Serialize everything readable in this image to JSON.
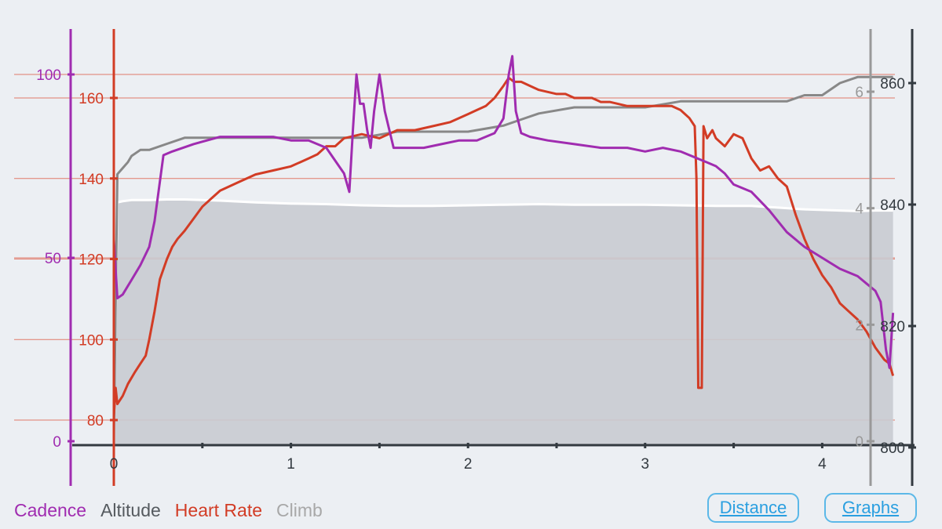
{
  "legend": {
    "cadence": "Cadence",
    "altitude": "Altitude",
    "heart_rate": "Heart Rate",
    "climb": "Climb"
  },
  "buttons": {
    "distance": "Distance",
    "graphs": "Graphs"
  },
  "colors": {
    "cadence": "#a02cb0",
    "heart_rate": "#d23c25",
    "altitude": "#888888",
    "climb": "#a8a8a8",
    "axis_dark": "#333a40",
    "button": "#2a9fe0"
  },
  "chart_data": {
    "type": "line",
    "x_axis": {
      "label": "",
      "min": 0,
      "max": 4.4,
      "ticks": [
        0,
        1,
        2,
        3,
        4
      ]
    },
    "axes": {
      "cadence": {
        "min": 0,
        "max": 115,
        "ticks": [
          0,
          50,
          100
        ]
      },
      "heart_rate": {
        "min": 75,
        "max": 176,
        "ticks": [
          80,
          100,
          120,
          140,
          160
        ]
      },
      "climb": {
        "min": 0,
        "max": 7.25,
        "ticks": [
          0,
          2,
          4,
          6
        ]
      },
      "altitude": {
        "min": 800,
        "max": 862,
        "ticks": [
          800,
          820,
          840,
          860
        ]
      }
    },
    "series": [
      {
        "name": "Heart Rate",
        "axis": "heart_rate",
        "x": [
          0,
          0.01,
          0.02,
          0.05,
          0.08,
          0.12,
          0.15,
          0.18,
          0.2,
          0.23,
          0.26,
          0.3,
          0.33,
          0.36,
          0.4,
          0.45,
          0.5,
          0.55,
          0.6,
          0.7,
          0.8,
          0.9,
          1.0,
          1.05,
          1.1,
          1.15,
          1.2,
          1.25,
          1.3,
          1.4,
          1.5,
          1.6,
          1.7,
          1.8,
          1.9,
          2.0,
          2.05,
          2.1,
          2.15,
          2.2,
          2.23,
          2.26,
          2.3,
          2.35,
          2.4,
          2.5,
          2.55,
          2.6,
          2.7,
          2.75,
          2.8,
          2.9,
          3.0,
          3.1,
          3.15,
          3.2,
          3.25,
          3.28,
          3.29,
          3.3,
          3.32,
          3.33,
          3.35,
          3.38,
          3.4,
          3.45,
          3.5,
          3.55,
          3.6,
          3.65,
          3.7,
          3.75,
          3.8,
          3.85,
          3.9,
          3.95,
          4.0,
          4.05,
          4.1,
          4.15,
          4.2,
          4.25,
          4.3,
          4.35,
          4.38,
          4.4
        ],
        "values": [
          81,
          88,
          84,
          86,
          89,
          92,
          94,
          96,
          100,
          107,
          115,
          120,
          123,
          125,
          127,
          130,
          133,
          135,
          137,
          139,
          141,
          142,
          143,
          144,
          145,
          146,
          148,
          148,
          150,
          151,
          150,
          152,
          152,
          153,
          154,
          156,
          157,
          158,
          160,
          163,
          165,
          164,
          164,
          163,
          162,
          161,
          161,
          160,
          160,
          159,
          159,
          158,
          158,
          158,
          158,
          157,
          155,
          153,
          140,
          88,
          88,
          153,
          150,
          152,
          150,
          148,
          151,
          150,
          145,
          142,
          143,
          140,
          138,
          131,
          125,
          120,
          116,
          113,
          109,
          107,
          105,
          102,
          98,
          95,
          94,
          91
        ]
      },
      {
        "name": "Cadence",
        "axis": "cadence",
        "x": [
          0,
          0.02,
          0.05,
          0.1,
          0.15,
          0.2,
          0.23,
          0.28,
          0.33,
          0.45,
          0.6,
          0.8,
          0.9,
          1.0,
          1.1,
          1.2,
          1.3,
          1.33,
          1.35,
          1.37,
          1.39,
          1.41,
          1.43,
          1.45,
          1.47,
          1.5,
          1.53,
          1.58,
          1.65,
          1.75,
          1.85,
          1.95,
          2.05,
          2.15,
          2.2,
          2.23,
          2.25,
          2.27,
          2.3,
          2.35,
          2.45,
          2.6,
          2.75,
          2.9,
          3.0,
          3.1,
          3.2,
          3.3,
          3.35,
          3.4,
          3.45,
          3.5,
          3.6,
          3.7,
          3.8,
          3.9,
          4.0,
          4.1,
          4.2,
          4.25,
          4.3,
          4.33,
          4.36,
          4.38,
          4.4
        ],
        "values": [
          55,
          39,
          40,
          44,
          48,
          53,
          60,
          78,
          79,
          81,
          83,
          83,
          83,
          82,
          82,
          80,
          73,
          68,
          85,
          100,
          92,
          92,
          85,
          80,
          90,
          100,
          90,
          80,
          80,
          80,
          81,
          82,
          82,
          84,
          88,
          100,
          105,
          90,
          84,
          83,
          82,
          81,
          80,
          80,
          79,
          80,
          79,
          77,
          76,
          75,
          73,
          70,
          68,
          63,
          57,
          53,
          50,
          47,
          45,
          43,
          41,
          38,
          25,
          20,
          35
        ]
      },
      {
        "name": "Altitude",
        "axis": "altitude",
        "x": [
          0,
          0.02,
          0.05,
          0.08,
          0.1,
          0.15,
          0.2,
          0.3,
          0.4,
          0.6,
          0.8,
          1.0,
          1.2,
          1.4,
          1.6,
          1.8,
          2.0,
          2.2,
          2.3,
          2.4,
          2.6,
          2.8,
          3.0,
          3.2,
          3.4,
          3.6,
          3.8,
          3.9,
          4.0,
          4.1,
          4.2,
          4.3,
          4.4
        ],
        "values": [
          801,
          845,
          846,
          847,
          848,
          849,
          849,
          850,
          851,
          851,
          851,
          851,
          851,
          851,
          852,
          852,
          852,
          853,
          854,
          855,
          856,
          856,
          856,
          857,
          857,
          857,
          857,
          858,
          858,
          860,
          861,
          861,
          861
        ]
      },
      {
        "name": "Climb",
        "axis": "climb",
        "x": [
          0,
          0.02,
          0.05,
          0.1,
          0.2,
          0.3,
          0.4,
          0.6,
          0.8,
          1.0,
          1.2,
          1.4,
          1.6,
          1.8,
          2.0,
          2.2,
          2.4,
          2.6,
          2.8,
          3.0,
          3.2,
          3.4,
          3.6,
          3.7,
          3.8,
          3.9,
          4.0,
          4.1,
          4.2,
          4.3,
          4.4
        ],
        "values": [
          0,
          4.1,
          4.12,
          4.14,
          4.14,
          4.15,
          4.15,
          4.13,
          4.1,
          4.08,
          4.07,
          4.05,
          4.04,
          4.04,
          4.05,
          4.06,
          4.07,
          4.06,
          4.06,
          4.06,
          4.05,
          4.04,
          4.04,
          4.02,
          4.0,
          3.98,
          3.97,
          3.96,
          3.95,
          3.96,
          3.96
        ]
      }
    ]
  }
}
